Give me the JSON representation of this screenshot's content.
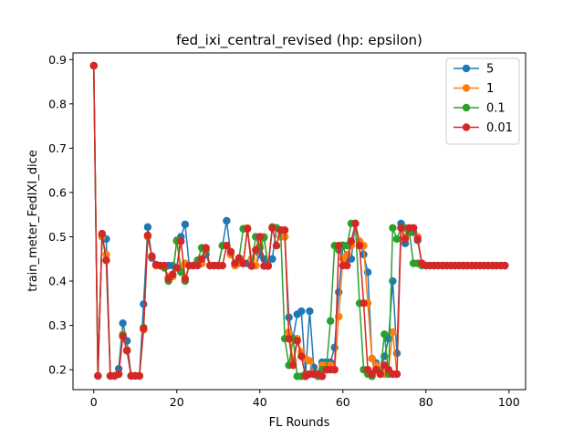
{
  "chart_data": {
    "type": "line",
    "title": "fed_ixi_central_revised (hp: epsilon)",
    "xlabel": "FL Rounds",
    "ylabel": "train_meter_FedIXI_dice",
    "xlim": [
      -5,
      104
    ],
    "ylim": [
      0.155,
      0.915
    ],
    "xticks": [
      0,
      20,
      40,
      60,
      80,
      100
    ],
    "xtick_labels": [
      "0",
      "20",
      "40",
      "60",
      "80",
      "100"
    ],
    "yticks": [
      0.2,
      0.3,
      0.4,
      0.5,
      0.6,
      0.7,
      0.8,
      0.9
    ],
    "ytick_labels": [
      "0.2",
      "0.3",
      "0.4",
      "0.5",
      "0.6",
      "0.7",
      "0.8",
      "0.9"
    ],
    "grid": false,
    "legend_position": "top-right",
    "x": [
      0,
      1,
      2,
      3,
      4,
      5,
      6,
      7,
      8,
      9,
      10,
      11,
      12,
      13,
      14,
      15,
      16,
      17,
      18,
      19,
      20,
      21,
      22,
      23,
      24,
      25,
      26,
      27,
      28,
      29,
      30,
      31,
      32,
      33,
      34,
      35,
      36,
      37,
      38,
      39,
      40,
      41,
      42,
      43,
      44,
      45,
      46,
      47,
      48,
      49,
      50,
      51,
      52,
      53,
      54,
      55,
      56,
      57,
      58,
      59,
      60,
      61,
      62,
      63,
      64,
      65,
      66,
      67,
      68,
      69,
      70,
      71,
      72,
      73,
      74,
      75,
      76,
      77,
      78,
      79,
      80,
      81,
      82,
      83,
      84,
      85,
      86,
      87,
      88,
      89,
      90,
      91,
      92,
      93,
      94,
      95,
      96,
      97,
      98,
      99
    ],
    "series": [
      {
        "name": "5",
        "color": "#1f77b4",
        "values": [
          0.886,
          0.186,
          0.5,
          0.495,
          0.186,
          0.186,
          0.202,
          0.305,
          0.265,
          0.186,
          0.186,
          0.186,
          0.348,
          0.522,
          0.452,
          0.435,
          0.435,
          0.435,
          0.435,
          0.435,
          0.43,
          0.5,
          0.528,
          0.435,
          0.435,
          0.44,
          0.44,
          0.46,
          0.435,
          0.435,
          0.435,
          0.48,
          0.536,
          0.46,
          0.435,
          0.44,
          0.44,
          0.44,
          0.435,
          0.435,
          0.46,
          0.45,
          0.435,
          0.45,
          0.52,
          0.5,
          0.5,
          0.318,
          0.27,
          0.325,
          0.332,
          0.19,
          0.332,
          0.205,
          0.19,
          0.217,
          0.217,
          0.217,
          0.25,
          0.375,
          0.48,
          0.45,
          0.45,
          0.53,
          0.49,
          0.46,
          0.42,
          0.225,
          0.215,
          0.2,
          0.23,
          0.27,
          0.4,
          0.237,
          0.53,
          0.485,
          0.51,
          0.51,
          0.492,
          0.44,
          0.435,
          0.435,
          0.435,
          0.435,
          0.435,
          0.435,
          0.435,
          0.435,
          0.435,
          0.435,
          0.435,
          0.435,
          0.435,
          0.435,
          0.435,
          0.435,
          0.435,
          0.435,
          0.435,
          0.435
        ]
      },
      {
        "name": "1",
        "color": "#ff7f0e",
        "values": [
          0.886,
          0.186,
          0.5,
          0.46,
          0.186,
          0.186,
          0.19,
          0.28,
          0.245,
          0.186,
          0.186,
          0.186,
          0.29,
          0.5,
          0.455,
          0.435,
          0.435,
          0.43,
          0.41,
          0.41,
          0.49,
          0.43,
          0.44,
          0.435,
          0.435,
          0.44,
          0.44,
          0.47,
          0.435,
          0.435,
          0.435,
          0.48,
          0.48,
          0.46,
          0.435,
          0.44,
          0.44,
          0.52,
          0.45,
          0.435,
          0.48,
          0.5,
          0.435,
          0.52,
          0.52,
          0.5,
          0.5,
          0.285,
          0.22,
          0.27,
          0.24,
          0.225,
          0.22,
          0.19,
          0.19,
          0.21,
          0.21,
          0.21,
          0.2,
          0.32,
          0.45,
          0.46,
          0.48,
          0.53,
          0.49,
          0.48,
          0.35,
          0.225,
          0.21,
          0.2,
          0.19,
          0.2,
          0.285,
          0.19,
          0.52,
          0.5,
          0.51,
          0.52,
          0.5,
          0.44,
          0.435,
          0.435,
          0.435,
          0.435,
          0.435,
          0.435,
          0.435,
          0.435,
          0.435,
          0.435,
          0.435,
          0.435,
          0.435,
          0.435,
          0.435,
          0.435,
          0.435,
          0.435,
          0.435,
          0.435
        ]
      },
      {
        "name": "0.1",
        "color": "#2ca02c",
        "values": [
          0.886,
          0.186,
          0.505,
          0.447,
          0.186,
          0.186,
          0.19,
          0.278,
          0.243,
          0.186,
          0.186,
          0.186,
          0.295,
          0.503,
          0.456,
          0.437,
          0.435,
          0.43,
          0.4,
          0.415,
          0.492,
          0.42,
          0.4,
          0.435,
          0.435,
          0.447,
          0.475,
          0.47,
          0.435,
          0.435,
          0.435,
          0.48,
          0.48,
          0.466,
          0.44,
          0.452,
          0.518,
          0.518,
          0.434,
          0.5,
          0.475,
          0.498,
          0.434,
          0.522,
          0.52,
          0.515,
          0.27,
          0.21,
          0.27,
          0.185,
          0.185,
          0.19,
          0.19,
          0.19,
          0.185,
          0.2,
          0.2,
          0.31,
          0.48,
          0.47,
          0.481,
          0.48,
          0.53,
          0.53,
          0.35,
          0.2,
          0.19,
          0.185,
          0.2,
          0.19,
          0.28,
          0.19,
          0.52,
          0.495,
          0.52,
          0.52,
          0.51,
          0.44,
          0.44,
          0.435,
          0.435,
          0.435,
          0.435,
          0.435,
          0.435,
          0.435,
          0.435,
          0.435,
          0.435,
          0.435,
          0.435,
          0.435,
          0.435,
          0.435,
          0.435,
          0.435,
          0.435,
          0.435,
          0.435,
          0.435
        ]
      },
      {
        "name": "0.01",
        "color": "#d62728",
        "values": [
          0.886,
          0.186,
          0.507,
          0.447,
          0.186,
          0.186,
          0.19,
          0.275,
          0.243,
          0.186,
          0.186,
          0.186,
          0.293,
          0.503,
          0.456,
          0.437,
          0.435,
          0.435,
          0.405,
          0.415,
          0.43,
          0.49,
          0.405,
          0.435,
          0.435,
          0.435,
          0.45,
          0.475,
          0.435,
          0.435,
          0.435,
          0.435,
          0.48,
          0.466,
          0.44,
          0.452,
          0.44,
          0.518,
          0.434,
          0.47,
          0.5,
          0.434,
          0.434,
          0.52,
          0.48,
          0.515,
          0.515,
          0.27,
          0.21,
          0.265,
          0.23,
          0.185,
          0.19,
          0.19,
          0.19,
          0.185,
          0.2,
          0.2,
          0.2,
          0.48,
          0.435,
          0.435,
          0.49,
          0.53,
          0.48,
          0.35,
          0.2,
          0.19,
          0.2,
          0.19,
          0.21,
          0.2,
          0.19,
          0.19,
          0.52,
          0.495,
          0.52,
          0.52,
          0.495,
          0.44,
          0.435,
          0.435,
          0.435,
          0.435,
          0.435,
          0.435,
          0.435,
          0.435,
          0.435,
          0.435,
          0.435,
          0.435,
          0.435,
          0.435,
          0.435,
          0.435,
          0.435,
          0.435,
          0.435,
          0.435
        ]
      }
    ]
  }
}
